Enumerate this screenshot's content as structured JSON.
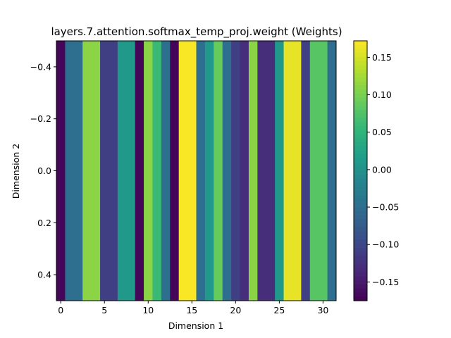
{
  "chart_data": {
    "type": "heatmap",
    "title": "layers.7.attention.softmax_temp_proj.weight (Weights)",
    "xlabel": "Dimension 1",
    "ylabel": "Dimension 2",
    "xlim": [
      -0.5,
      31.5
    ],
    "ylim": [
      0.5,
      -0.5
    ],
    "rows": 1,
    "cols": 32,
    "colormap": "viridis",
    "values": [
      [
        -0.17,
        -0.05,
        -0.05,
        0.11,
        0.11,
        -0.11,
        -0.11,
        0.01,
        0.01,
        -0.17,
        0.11,
        0.06,
        -0.05,
        -0.17,
        0.17,
        0.17,
        -0.05,
        0.01,
        0.09,
        -0.05,
        -0.11,
        -0.13,
        0.11,
        -0.13,
        -0.13,
        0.01,
        0.16,
        0.16,
        -0.11,
        0.08,
        0.08,
        -0.05
      ]
    ],
    "colorbar": {
      "min": -0.175,
      "max": 0.172,
      "ticks": [
        -0.15,
        -0.1,
        -0.05,
        0.0,
        0.05,
        0.1,
        0.15
      ]
    },
    "x_ticks": [
      0,
      5,
      10,
      15,
      20,
      25,
      30
    ],
    "y_ticks": [
      -0.4,
      -0.2,
      0.0,
      0.2,
      0.4
    ],
    "x_tick_labels": [
      "0",
      "5",
      "10",
      "15",
      "20",
      "25",
      "30"
    ],
    "y_tick_labels": [
      "−0.4",
      "−0.2",
      "0.0",
      "0.2",
      "0.4"
    ],
    "colorbar_tick_labels": [
      "−0.15",
      "−0.10",
      "−0.05",
      "0.00",
      "0.05",
      "0.10",
      "0.15"
    ],
    "grid": false
  }
}
